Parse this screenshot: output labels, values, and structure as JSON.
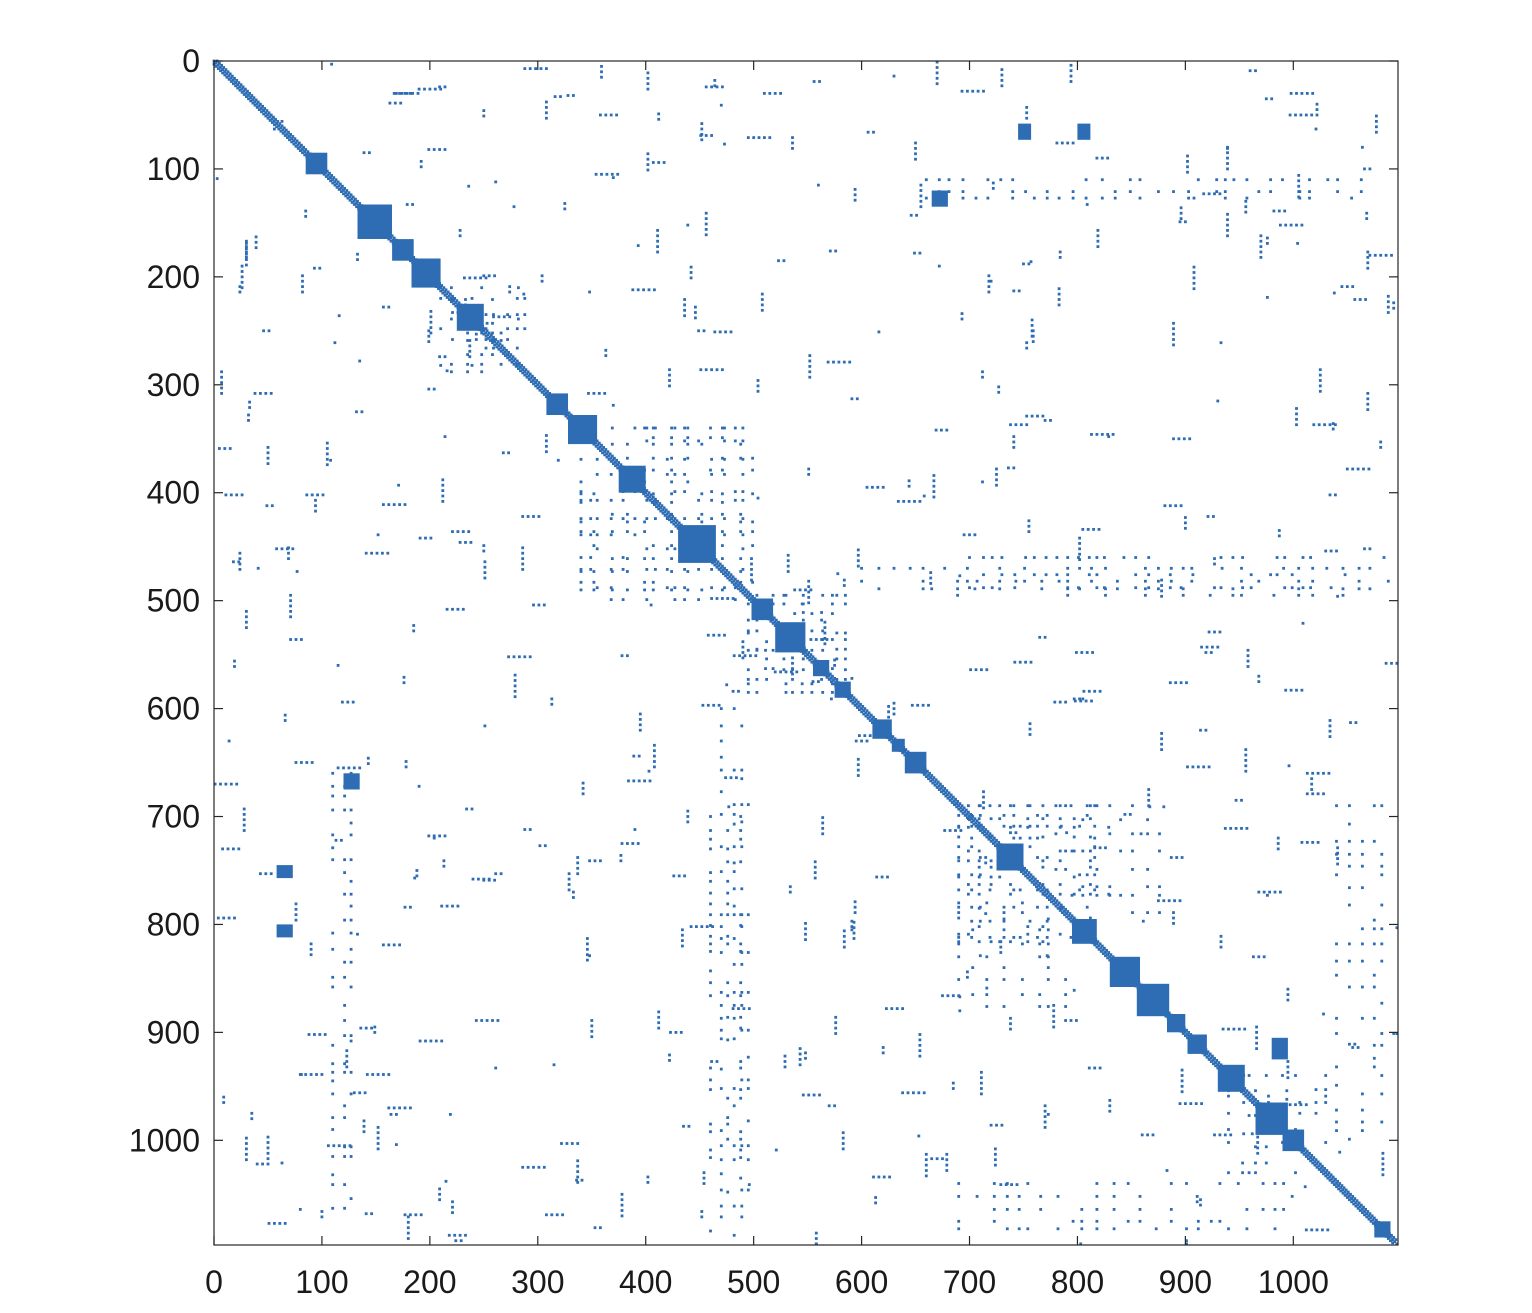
{
  "chart_data": {
    "type": "scatter",
    "title": "",
    "xlabel": "",
    "ylabel": "",
    "xlim": [
      0,
      1097
    ],
    "ylim": [
      0,
      1097
    ],
    "y_axis_direction": "reversed",
    "grid": false,
    "legend": "none",
    "marker_color": "#2e6db4",
    "x_ticks": [
      "0",
      "100",
      "200",
      "300",
      "400",
      "500",
      "600",
      "700",
      "800",
      "900",
      "1000"
    ],
    "y_ticks": [
      "0",
      "100",
      "200",
      "300",
      "400",
      "500",
      "600",
      "700",
      "800",
      "900",
      "1000"
    ],
    "x_tick_values": [
      0,
      100,
      200,
      300,
      400,
      500,
      600,
      700,
      800,
      900,
      1000
    ],
    "y_tick_values": [
      0,
      100,
      200,
      300,
      400,
      500,
      600,
      700,
      800,
      900,
      1000
    ],
    "matrix_size": 1097,
    "diagonal_blocks": [
      {
        "start": 85,
        "end": 105
      },
      {
        "start": 133,
        "end": 165
      },
      {
        "start": 165,
        "end": 185
      },
      {
        "start": 183,
        "end": 210
      },
      {
        "start": 225,
        "end": 250
      },
      {
        "start": 308,
        "end": 328
      },
      {
        "start": 328,
        "end": 355
      },
      {
        "start": 375,
        "end": 400
      },
      {
        "start": 430,
        "end": 465
      },
      {
        "start": 498,
        "end": 518
      },
      {
        "start": 520,
        "end": 548
      },
      {
        "start": 555,
        "end": 570
      },
      {
        "start": 575,
        "end": 590
      },
      {
        "start": 610,
        "end": 628
      },
      {
        "start": 628,
        "end": 640
      },
      {
        "start": 640,
        "end": 660
      },
      {
        "start": 725,
        "end": 750
      },
      {
        "start": 795,
        "end": 818
      },
      {
        "start": 830,
        "end": 858
      },
      {
        "start": 855,
        "end": 885
      },
      {
        "start": 883,
        "end": 900
      },
      {
        "start": 902,
        "end": 920
      },
      {
        "start": 930,
        "end": 955
      },
      {
        "start": 965,
        "end": 995
      },
      {
        "start": 990,
        "end": 1010
      },
      {
        "start": 1075,
        "end": 1090
      }
    ],
    "dense_offdiagonal_blocks": [
      {
        "rows": [
          58,
          70
        ],
        "cols": [
          745,
          760
        ]
      },
      {
        "rows": [
          58,
          70
        ],
        "cols": [
          800,
          815
        ]
      },
      {
        "rows": [
          120,
          135
        ],
        "cols": [
          665,
          680
        ]
      },
      {
        "rows": [
          660,
          675
        ],
        "cols": [
          120,
          135
        ]
      },
      {
        "rows": [
          745,
          760
        ],
        "cols": [
          58,
          70
        ]
      },
      {
        "rows": [
          800,
          815
        ],
        "cols": [
          58,
          70
        ]
      },
      {
        "rows": [
          905,
          920
        ],
        "cols": [
          980,
          1000
        ]
      }
    ],
    "scattered_regions": [
      {
        "rows": [
          210,
          290
        ],
        "cols": [
          220,
          290
        ]
      },
      {
        "rows": [
          340,
          490
        ],
        "cols": [
          340,
          500
        ]
      },
      {
        "rows": [
          495,
          590
        ],
        "cols": [
          495,
          590
        ]
      },
      {
        "rows": [
          690,
          820
        ],
        "cols": [
          690,
          830
        ]
      },
      {
        "rows": [
          940,
          1010
        ],
        "cols": [
          940,
          1040
        ]
      },
      {
        "rows": [
          110,
          130
        ],
        "cols": [
          660,
          1070
        ]
      },
      {
        "rows": [
          470,
          500
        ],
        "cols": [
          600,
          1090
        ]
      },
      {
        "rows": [
          700,
          1090
        ],
        "cols": [
          460,
          500
        ]
      },
      {
        "rows": [
          780,
          880
        ],
        "cols": [
          690,
          790
        ]
      },
      {
        "rows": [
          1040,
          1090
        ],
        "cols": [
          690,
          1000
        ]
      }
    ]
  }
}
